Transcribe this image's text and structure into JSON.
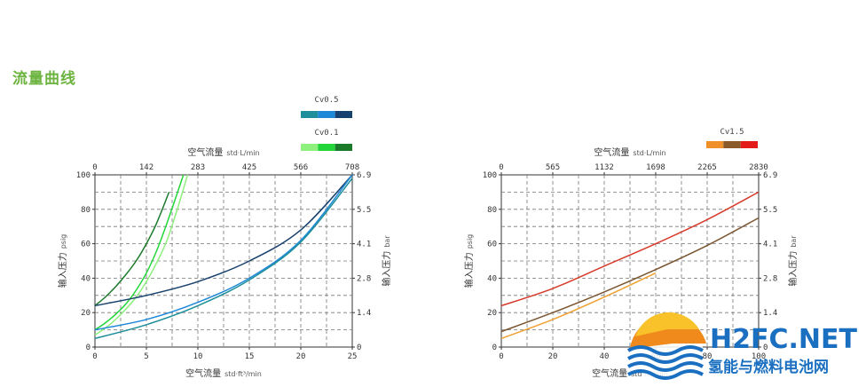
{
  "page": {
    "title": "流量曲线"
  },
  "watermark": {
    "logo_text": "H2FC.NET",
    "site_name": "氢能与燃料电池网"
  },
  "chart_data": [
    {
      "type": "line",
      "x_top_label": "空气流量",
      "x_top_unit": "std·L/min",
      "x_bottom_label": "空气流量",
      "x_bottom_unit": "std·ft³/min",
      "y_left_label": "输入压力",
      "y_left_unit": "psig",
      "y_right_label": "输入压力",
      "y_right_unit": "bar",
      "xlim": [
        0,
        25
      ],
      "ylim": [
        0,
        100
      ],
      "x_ticks": [
        "0",
        "5",
        "10",
        "15",
        "20",
        "25"
      ],
      "x_top_ticks": [
        "0",
        "142",
        "283",
        "425",
        "566",
        "708"
      ],
      "y_ticks": [
        "0",
        "20",
        "40",
        "60",
        "80",
        "100"
      ],
      "y_right_ticks": [
        "0",
        "1.4",
        "2.8",
        "4.1",
        "5.5",
        "6.9"
      ],
      "grid": true,
      "legends": [
        {
          "name": "Cv0.5",
          "swatches": [
            "#1d8f9a",
            "#1e88d8",
            "#17416e"
          ]
        },
        {
          "name": "Cv0.1",
          "swatches": [
            "#8ef07d",
            "#22d63a",
            "#1b7a2a"
          ]
        }
      ],
      "series": [
        {
          "color": "#1b7a2a",
          "x": [
            0,
            1,
            2,
            3,
            4,
            5,
            6,
            7.2
          ],
          "y": [
            24,
            29,
            35,
            42,
            50,
            60,
            72,
            90
          ]
        },
        {
          "color": "#22d63a",
          "x": [
            0,
            1,
            2,
            3,
            4,
            5,
            6,
            7,
            8.6
          ],
          "y": [
            10,
            14,
            19,
            25,
            33,
            43,
            56,
            72,
            100
          ]
        },
        {
          "color": "#8ef07d",
          "x": [
            0,
            1,
            2,
            3,
            4,
            5,
            6,
            7,
            8,
            9
          ],
          "y": [
            7,
            11,
            16,
            22,
            29,
            38,
            49,
            62,
            80,
            100
          ]
        },
        {
          "color": "#17416e",
          "x": [
            0,
            5,
            10,
            15,
            20,
            25
          ],
          "y": [
            24,
            30,
            38,
            50,
            68,
            100
          ]
        },
        {
          "color": "#1e88d8",
          "x": [
            0,
            5,
            10,
            15,
            20,
            25
          ],
          "y": [
            10,
            16,
            26,
            40,
            62,
            100
          ]
        },
        {
          "color": "#1d8f9a",
          "x": [
            0,
            5,
            10,
            15,
            20,
            25
          ],
          "y": [
            5,
            13,
            24,
            39,
            61,
            98
          ]
        }
      ]
    },
    {
      "type": "line",
      "x_top_label": "空气流量",
      "x_top_unit": "std·L/min",
      "x_bottom_label": "空气流量",
      "x_bottom_unit": "std·ft³/min",
      "y_left_label": "输入压力",
      "y_left_unit": "psig",
      "y_right_label": "输入压力",
      "y_right_unit": "bar",
      "xlim": [
        0,
        100
      ],
      "ylim": [
        0,
        100
      ],
      "x_ticks": [
        "0",
        "20",
        "40",
        "60",
        "80",
        "100"
      ],
      "x_top_ticks": [
        "0",
        "565",
        "1132",
        "1698",
        "2265",
        "2830"
      ],
      "y_ticks": [
        "0",
        "20",
        "40",
        "60",
        "80",
        "100"
      ],
      "y_right_ticks": [
        "0",
        "1.4",
        "2.8",
        "4.1",
        "5.5",
        "6.9"
      ],
      "grid": true,
      "legends": [
        {
          "name": "Cv1.5",
          "swatches": [
            "#f0902a",
            "#8a5a2b",
            "#e41b1b"
          ]
        }
      ],
      "series": [
        {
          "color": "#d83a2a",
          "x": [
            0,
            20,
            40,
            60,
            80,
            100
          ],
          "y": [
            24,
            34,
            47,
            60,
            74,
            90
          ]
        },
        {
          "color": "#7a5530",
          "x": [
            0,
            20,
            40,
            60,
            80,
            100
          ],
          "y": [
            9,
            20,
            32,
            45,
            59,
            75
          ]
        },
        {
          "color": "#f0a030",
          "x": [
            0,
            20,
            40,
            60
          ],
          "y": [
            5,
            16,
            29,
            43
          ]
        }
      ]
    }
  ]
}
